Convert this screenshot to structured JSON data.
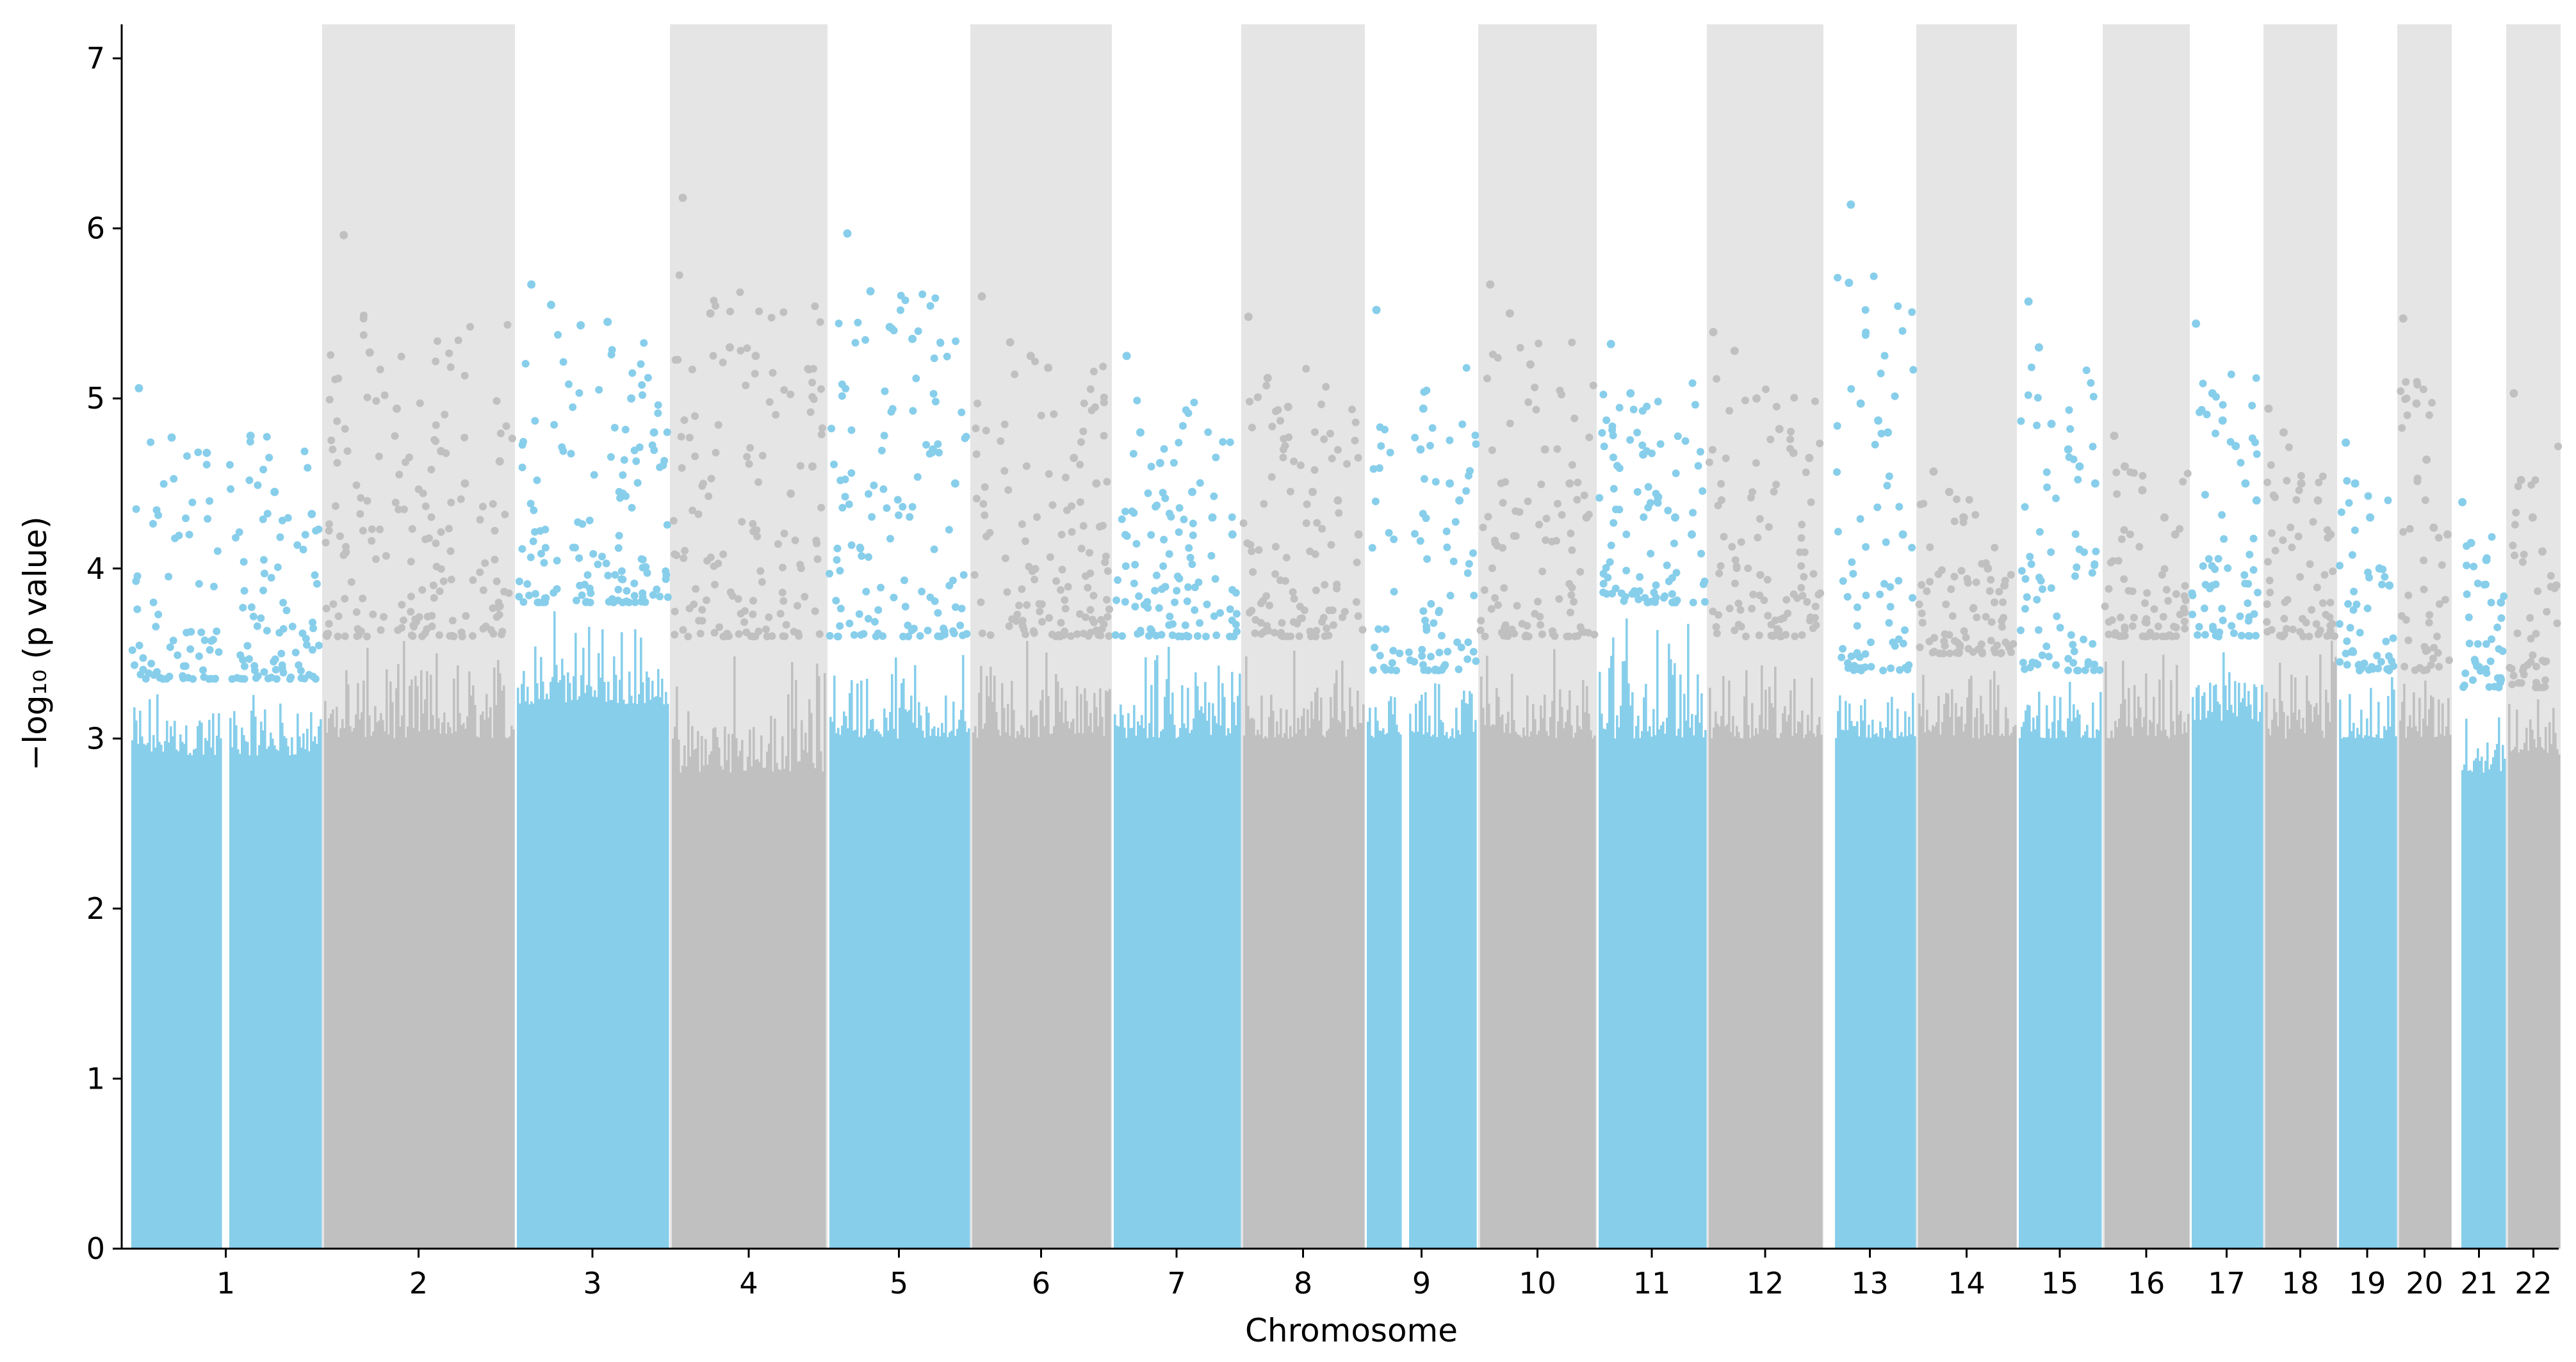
{
  "chart_data": {
    "type": "scatter",
    "subtype": "manhattan",
    "title": "",
    "xlabel": "Chromosome",
    "ylabel": "−log₁₀ (p value)",
    "ylim": [
      0,
      7.2
    ],
    "yticks": [
      0,
      1,
      2,
      3,
      4,
      5,
      6,
      7
    ],
    "grid": false,
    "legend": "none",
    "colors": {
      "odd": "#87ceeb",
      "even": "#c0c0c0",
      "band": "#e5e5e5"
    },
    "chromosomes": [
      {
        "label": "1",
        "gaps": [
          [
            0.47,
            0.515
          ]
        ],
        "base": 2.9,
        "top": 3.35,
        "peaks": [
          5.06,
          4.77,
          4.68,
          4.78,
          4.45,
          4.32
        ]
      },
      {
        "label": "2",
        "gaps": [],
        "base": 3.0,
        "top": 3.6,
        "peaks": [
          5.96,
          5.27,
          4.94,
          4.69,
          4.5,
          4.63
        ]
      },
      {
        "label": "3",
        "gaps": [],
        "base": 3.2,
        "top": 3.8,
        "peaks": [
          5.67,
          5.55,
          5.43,
          5.45,
          5.0,
          4.8
        ]
      },
      {
        "label": "4",
        "gaps": [],
        "base": 2.8,
        "top": 3.6,
        "peaks": [
          6.18,
          5.5,
          5.3,
          5.25,
          4.44,
          4.6
        ]
      },
      {
        "label": "5",
        "gaps": [],
        "base": 3.0,
        "top": 3.6,
        "peaks": [
          5.97,
          5.63,
          5.42,
          5.35,
          4.7,
          4.5
        ]
      },
      {
        "label": "6",
        "gaps": [],
        "base": 3.0,
        "top": 3.6,
        "peaks": [
          5.6,
          5.33,
          5.25,
          5.18,
          4.65,
          4.5
        ]
      },
      {
        "label": "7",
        "gaps": [],
        "base": 3.0,
        "top": 3.6,
        "peaks": [
          5.25,
          4.8,
          4.62,
          4.45,
          4.3,
          4.2
        ]
      },
      {
        "label": "8",
        "gaps": [],
        "base": 3.0,
        "top": 3.6,
        "peaks": [
          5.48,
          5.12,
          4.95,
          4.45,
          4.4,
          4.2
        ]
      },
      {
        "label": "9",
        "gaps": [
          [
            0.31,
            0.38
          ]
        ],
        "base": 3.0,
        "top": 3.4,
        "peaks": [
          5.52,
          4.94,
          4.7,
          4.5,
          4.4
        ]
      },
      {
        "label": "10",
        "gaps": [],
        "base": 3.0,
        "top": 3.6,
        "peaks": [
          5.67,
          5.5,
          5.2,
          4.7,
          4.5,
          4.3
        ]
      },
      {
        "label": "11",
        "gaps": [],
        "base": 3.0,
        "top": 3.8,
        "peaks": [
          5.32,
          5.03,
          4.67,
          4.42,
          4.3,
          4.2
        ]
      },
      {
        "label": "12",
        "gaps": [],
        "base": 3.0,
        "top": 3.6,
        "peaks": [
          5.39,
          5.28,
          5.0,
          4.82,
          4.68,
          4.65
        ]
      },
      {
        "label": "13",
        "gaps": [
          [
            0.0,
            0.1
          ]
        ],
        "base": 3.0,
        "top": 3.4,
        "peaks": [
          6.14,
          5.68,
          4.97,
          4.87,
          4.8,
          4.2
        ]
      },
      {
        "label": "14",
        "gaps": [],
        "base": 3.0,
        "top": 3.5,
        "peaks": [
          4.57,
          4.45,
          4.3,
          4.0,
          3.9
        ]
      },
      {
        "label": "15",
        "gaps": [],
        "base": 3.0,
        "top": 3.4,
        "peaks": [
          5.57,
          5.3,
          4.85,
          4.7,
          4.6,
          4.5
        ]
      },
      {
        "label": "16",
        "gaps": [],
        "base": 3.0,
        "top": 3.6,
        "peaks": [
          4.78,
          4.6,
          4.46,
          4.3,
          4.2
        ]
      },
      {
        "label": "17",
        "gaps": [],
        "base": 3.1,
        "top": 3.6,
        "peaks": [
          5.44,
          5.03,
          4.87,
          4.72,
          4.5,
          4.4
        ]
      },
      {
        "label": "18",
        "gaps": [],
        "base": 3.0,
        "top": 3.6,
        "peaks": [
          4.94,
          4.8,
          4.5,
          4.4,
          4.2
        ]
      },
      {
        "label": "19",
        "gaps": [],
        "base": 3.0,
        "top": 3.4,
        "peaks": [
          4.74,
          4.5,
          4.3,
          4.0,
          3.9
        ]
      },
      {
        "label": "20",
        "gaps": [],
        "base": 3.0,
        "top": 3.4,
        "peaks": [
          5.47,
          4.97,
          4.64,
          4.24,
          4.2
        ]
      },
      {
        "label": "21",
        "gaps": [
          [
            0.0,
            0.15
          ]
        ],
        "base": 2.8,
        "top": 3.3,
        "peaks": [
          4.39,
          4.15,
          4.05,
          3.8
        ]
      },
      {
        "label": "22",
        "gaps": [],
        "base": 2.9,
        "top": 3.3,
        "peaks": [
          5.03,
          4.52,
          4.3,
          4.1,
          3.9
        ]
      }
    ]
  }
}
